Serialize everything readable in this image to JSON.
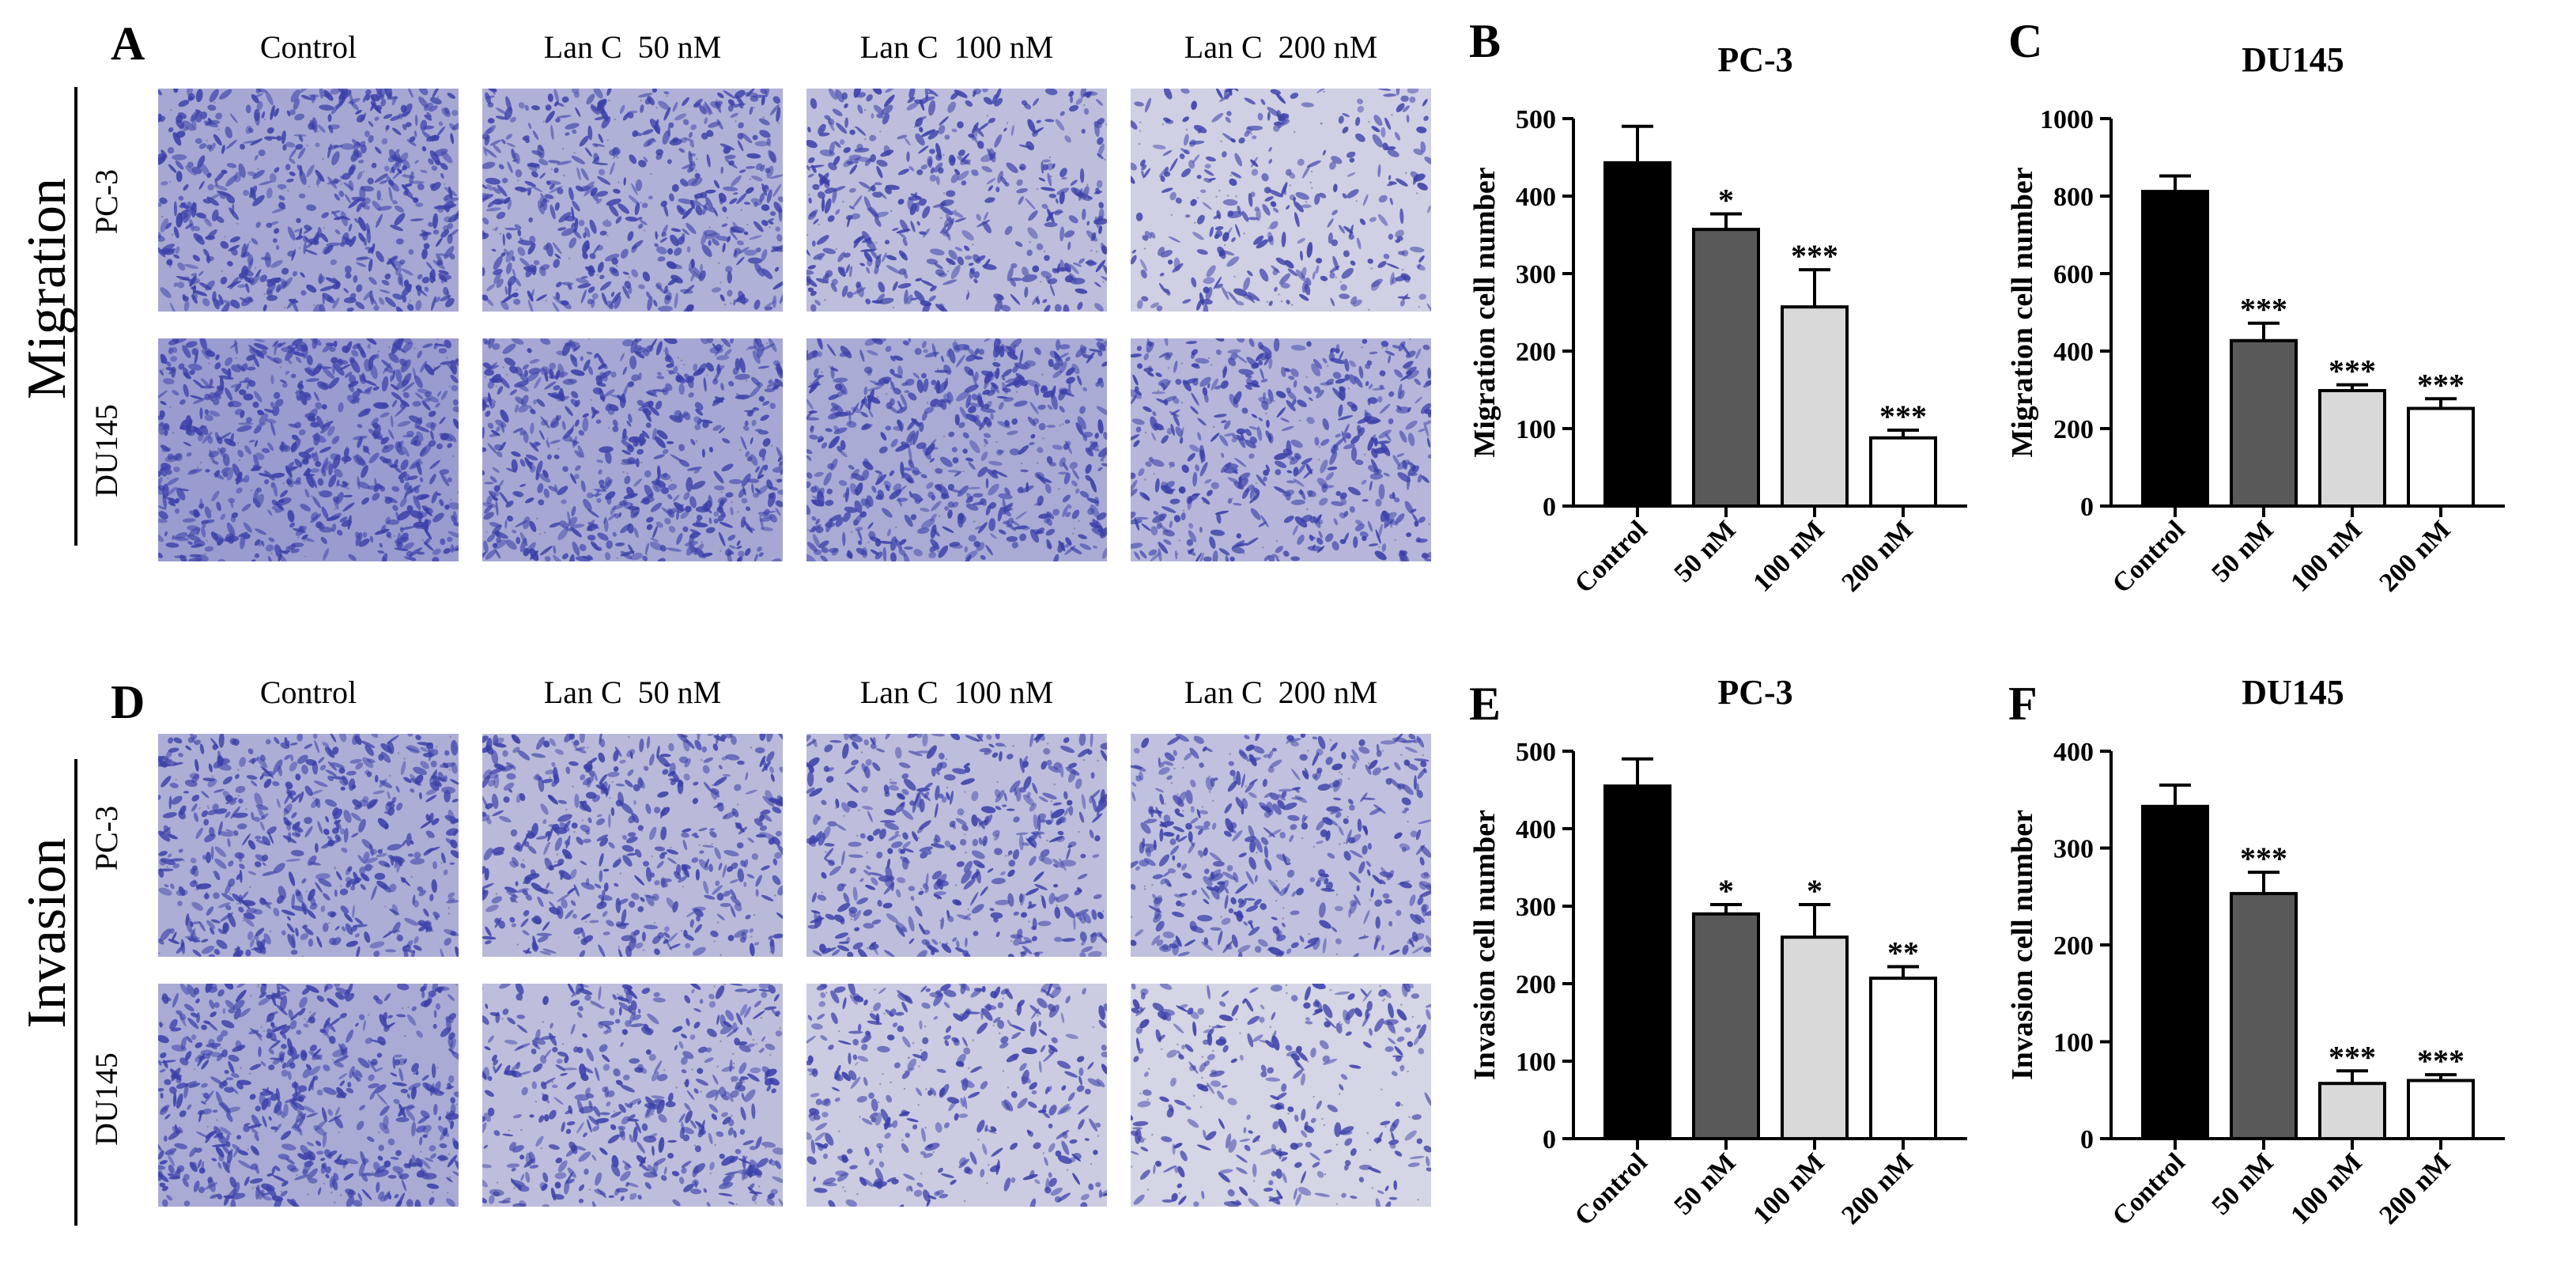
{
  "figure": {
    "panels": {
      "A": "A",
      "B": "B",
      "C": "C",
      "D": "D",
      "E": "E",
      "F": "F"
    },
    "column_labels": [
      "Control",
      "Lan C  50 nM",
      "Lan C  100 nM",
      "Lan C  200 nM"
    ],
    "row_labels": [
      "PC-3",
      "DU145"
    ],
    "section_labels": {
      "migration": "Migration",
      "invasion": "Invasion"
    },
    "colors": {
      "stain": "#3b3fa8",
      "background_light": "#e8e8ee",
      "bar_control": "#000000",
      "bar_50": "#595959",
      "bar_100": "#d9d9d9",
      "bar_200": "#ffffff"
    },
    "micrograph_density": {
      "migration": {
        "PC-3": [
          0.85,
          0.7,
          0.55,
          0.3
        ],
        "DU145": [
          1.0,
          0.85,
          0.8,
          0.65
        ]
      },
      "invasion": {
        "PC-3": [
          0.75,
          0.6,
          0.55,
          0.5
        ],
        "DU145": [
          0.8,
          0.55,
          0.35,
          0.25
        ]
      }
    }
  },
  "chart_data": [
    {
      "panel": "B",
      "type": "bar",
      "title": "PC-3",
      "ylabel": "Migration cell number",
      "categories": [
        "Control",
        "50 nM",
        "100 nM",
        "200 nM"
      ],
      "values": [
        443,
        357,
        257,
        88
      ],
      "errors": [
        47,
        20,
        48,
        10
      ],
      "significance": [
        "",
        "*",
        "***",
        "***"
      ],
      "ylim": [
        0,
        500
      ],
      "yticks": [
        0,
        100,
        200,
        300,
        400,
        500
      ]
    },
    {
      "panel": "C",
      "type": "bar",
      "title": "DU145",
      "ylabel": "Migration cell number",
      "categories": [
        "Control",
        "50 nM",
        "100 nM",
        "200 nM"
      ],
      "values": [
        812,
        427,
        298,
        252
      ],
      "errors": [
        40,
        45,
        15,
        25
      ],
      "significance": [
        "",
        "***",
        "***",
        "***"
      ],
      "ylim": [
        0,
        1000
      ],
      "yticks": [
        0,
        200,
        400,
        600,
        800,
        1000
      ]
    },
    {
      "panel": "E",
      "type": "bar",
      "title": "PC-3",
      "ylabel": "Invasion cell number",
      "categories": [
        "Control",
        "50 nM",
        "100 nM",
        "200 nM"
      ],
      "values": [
        455,
        290,
        260,
        207
      ],
      "errors": [
        35,
        12,
        42,
        15
      ],
      "significance": [
        "",
        "*",
        "*",
        "**"
      ],
      "ylim": [
        0,
        500
      ],
      "yticks": [
        0,
        100,
        200,
        300,
        400,
        500
      ]
    },
    {
      "panel": "F",
      "type": "bar",
      "title": "DU145",
      "ylabel": "Invasion cell number",
      "categories": [
        "Control",
        "50 nM",
        "100 nM",
        "200 nM"
      ],
      "values": [
        343,
        253,
        57,
        60
      ],
      "errors": [
        22,
        22,
        13,
        6
      ],
      "significance": [
        "",
        "***",
        "***",
        "***"
      ],
      "ylim": [
        0,
        400
      ],
      "yticks": [
        0,
        100,
        200,
        300,
        400
      ]
    }
  ]
}
